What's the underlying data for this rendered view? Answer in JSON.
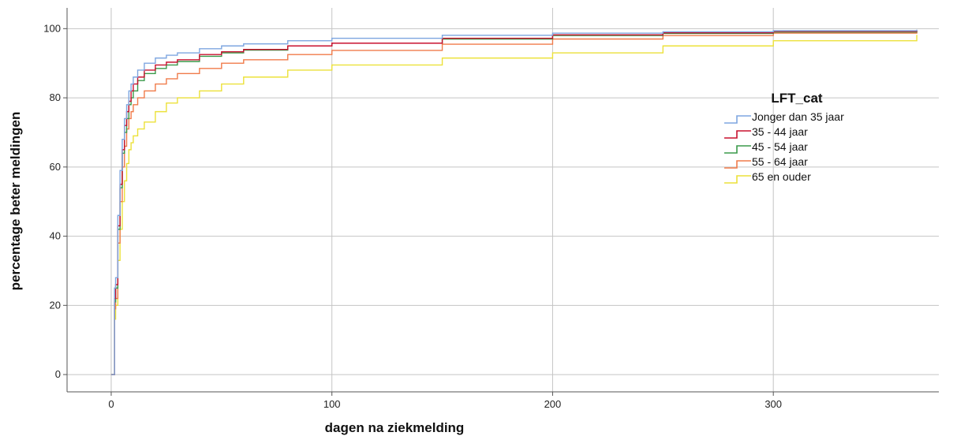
{
  "chart_data": {
    "type": "line",
    "step": true,
    "xlabel": "dagen na ziekmelding",
    "ylabel": "percentage beter meldingen",
    "xlim": [
      -20,
      375
    ],
    "ylim": [
      -5,
      106
    ],
    "xticks": [
      0,
      100,
      200,
      300
    ],
    "yticks": [
      0,
      20,
      40,
      60,
      80,
      100
    ],
    "grid": true,
    "legend": {
      "title": "LFT_cat",
      "placement": "right"
    },
    "series": [
      {
        "name": "Jonger dan 35 jaar",
        "color": "#7ea6e0",
        "points": [
          [
            0,
            0
          ],
          [
            1,
            0
          ],
          [
            1.5,
            25
          ],
          [
            2,
            28
          ],
          [
            3,
            46
          ],
          [
            4,
            59
          ],
          [
            5,
            68
          ],
          [
            6,
            74
          ],
          [
            7,
            78
          ],
          [
            8,
            82
          ],
          [
            9,
            84
          ],
          [
            10,
            86
          ],
          [
            12,
            88
          ],
          [
            15,
            90
          ],
          [
            20,
            91.5
          ],
          [
            25,
            92.3
          ],
          [
            30,
            93
          ],
          [
            40,
            94.2
          ],
          [
            50,
            95
          ],
          [
            60,
            95.6
          ],
          [
            80,
            96.5
          ],
          [
            100,
            97.2
          ],
          [
            150,
            98.1
          ],
          [
            200,
            98.7
          ],
          [
            250,
            99.1
          ],
          [
            300,
            99.4
          ],
          [
            365,
            99.7
          ]
        ]
      },
      {
        "name": "35 - 44 jaar",
        "color": "#c8102e",
        "points": [
          [
            0,
            0
          ],
          [
            1,
            0
          ],
          [
            1.5,
            22
          ],
          [
            2,
            26
          ],
          [
            3,
            43
          ],
          [
            4,
            55
          ],
          [
            5,
            65
          ],
          [
            6,
            72
          ],
          [
            7,
            76
          ],
          [
            8,
            79
          ],
          [
            9,
            82
          ],
          [
            10,
            84
          ],
          [
            12,
            86
          ],
          [
            15,
            88
          ],
          [
            20,
            89.5
          ],
          [
            25,
            90.3
          ],
          [
            30,
            91
          ],
          [
            40,
            92.5
          ],
          [
            50,
            93.3
          ],
          [
            60,
            94
          ],
          [
            80,
            95
          ],
          [
            100,
            95.8
          ],
          [
            150,
            97.2
          ],
          [
            200,
            98.2
          ],
          [
            250,
            98.8
          ],
          [
            300,
            99.2
          ],
          [
            365,
            99.5
          ]
        ]
      },
      {
        "name": "45 - 54 jaar",
        "color": "#3a9a4a",
        "points": [
          [
            0,
            0
          ],
          [
            1,
            0
          ],
          [
            1.5,
            21
          ],
          [
            2,
            25
          ],
          [
            3,
            42
          ],
          [
            4,
            54
          ],
          [
            5,
            64
          ],
          [
            6,
            70
          ],
          [
            7,
            74
          ],
          [
            8,
            78
          ],
          [
            9,
            80
          ],
          [
            10,
            82
          ],
          [
            12,
            85
          ],
          [
            15,
            87
          ],
          [
            20,
            88.5
          ],
          [
            25,
            89.5
          ],
          [
            30,
            90.5
          ],
          [
            40,
            92
          ],
          [
            50,
            93
          ],
          [
            60,
            93.8
          ],
          [
            80,
            95
          ],
          [
            100,
            95.8
          ],
          [
            150,
            97
          ],
          [
            200,
            98
          ],
          [
            250,
            98.6
          ],
          [
            300,
            99
          ],
          [
            365,
            99.4
          ]
        ]
      },
      {
        "name": "55 - 64 jaar",
        "color": "#f07b4a",
        "points": [
          [
            0,
            0
          ],
          [
            1,
            0
          ],
          [
            1.5,
            19
          ],
          [
            2,
            22
          ],
          [
            3,
            38
          ],
          [
            4,
            50
          ],
          [
            5,
            60
          ],
          [
            6,
            66
          ],
          [
            7,
            71
          ],
          [
            8,
            74
          ],
          [
            9,
            76
          ],
          [
            10,
            78
          ],
          [
            12,
            80
          ],
          [
            15,
            82
          ],
          [
            20,
            84
          ],
          [
            25,
            85.5
          ],
          [
            30,
            87
          ],
          [
            40,
            88.5
          ],
          [
            50,
            90
          ],
          [
            60,
            91
          ],
          [
            80,
            92.5
          ],
          [
            100,
            93.7
          ],
          [
            150,
            95.5
          ],
          [
            200,
            97
          ],
          [
            250,
            98
          ],
          [
            300,
            98.7
          ],
          [
            365,
            99.2
          ]
        ]
      },
      {
        "name": "65 en ouder",
        "color": "#ece13a",
        "points": [
          [
            0,
            0
          ],
          [
            1,
            0
          ],
          [
            1.5,
            16
          ],
          [
            2,
            20
          ],
          [
            3,
            33
          ],
          [
            4,
            42
          ],
          [
            5,
            50
          ],
          [
            6,
            56
          ],
          [
            7,
            61
          ],
          [
            8,
            65
          ],
          [
            9,
            67
          ],
          [
            10,
            69
          ],
          [
            12,
            71
          ],
          [
            15,
            73
          ],
          [
            20,
            76
          ],
          [
            25,
            78.5
          ],
          [
            30,
            80
          ],
          [
            40,
            82
          ],
          [
            50,
            84
          ],
          [
            60,
            86
          ],
          [
            80,
            88
          ],
          [
            100,
            89.5
          ],
          [
            150,
            91.5
          ],
          [
            200,
            93
          ],
          [
            250,
            95
          ],
          [
            300,
            96.5
          ],
          [
            365,
            98.2
          ]
        ]
      }
    ]
  }
}
